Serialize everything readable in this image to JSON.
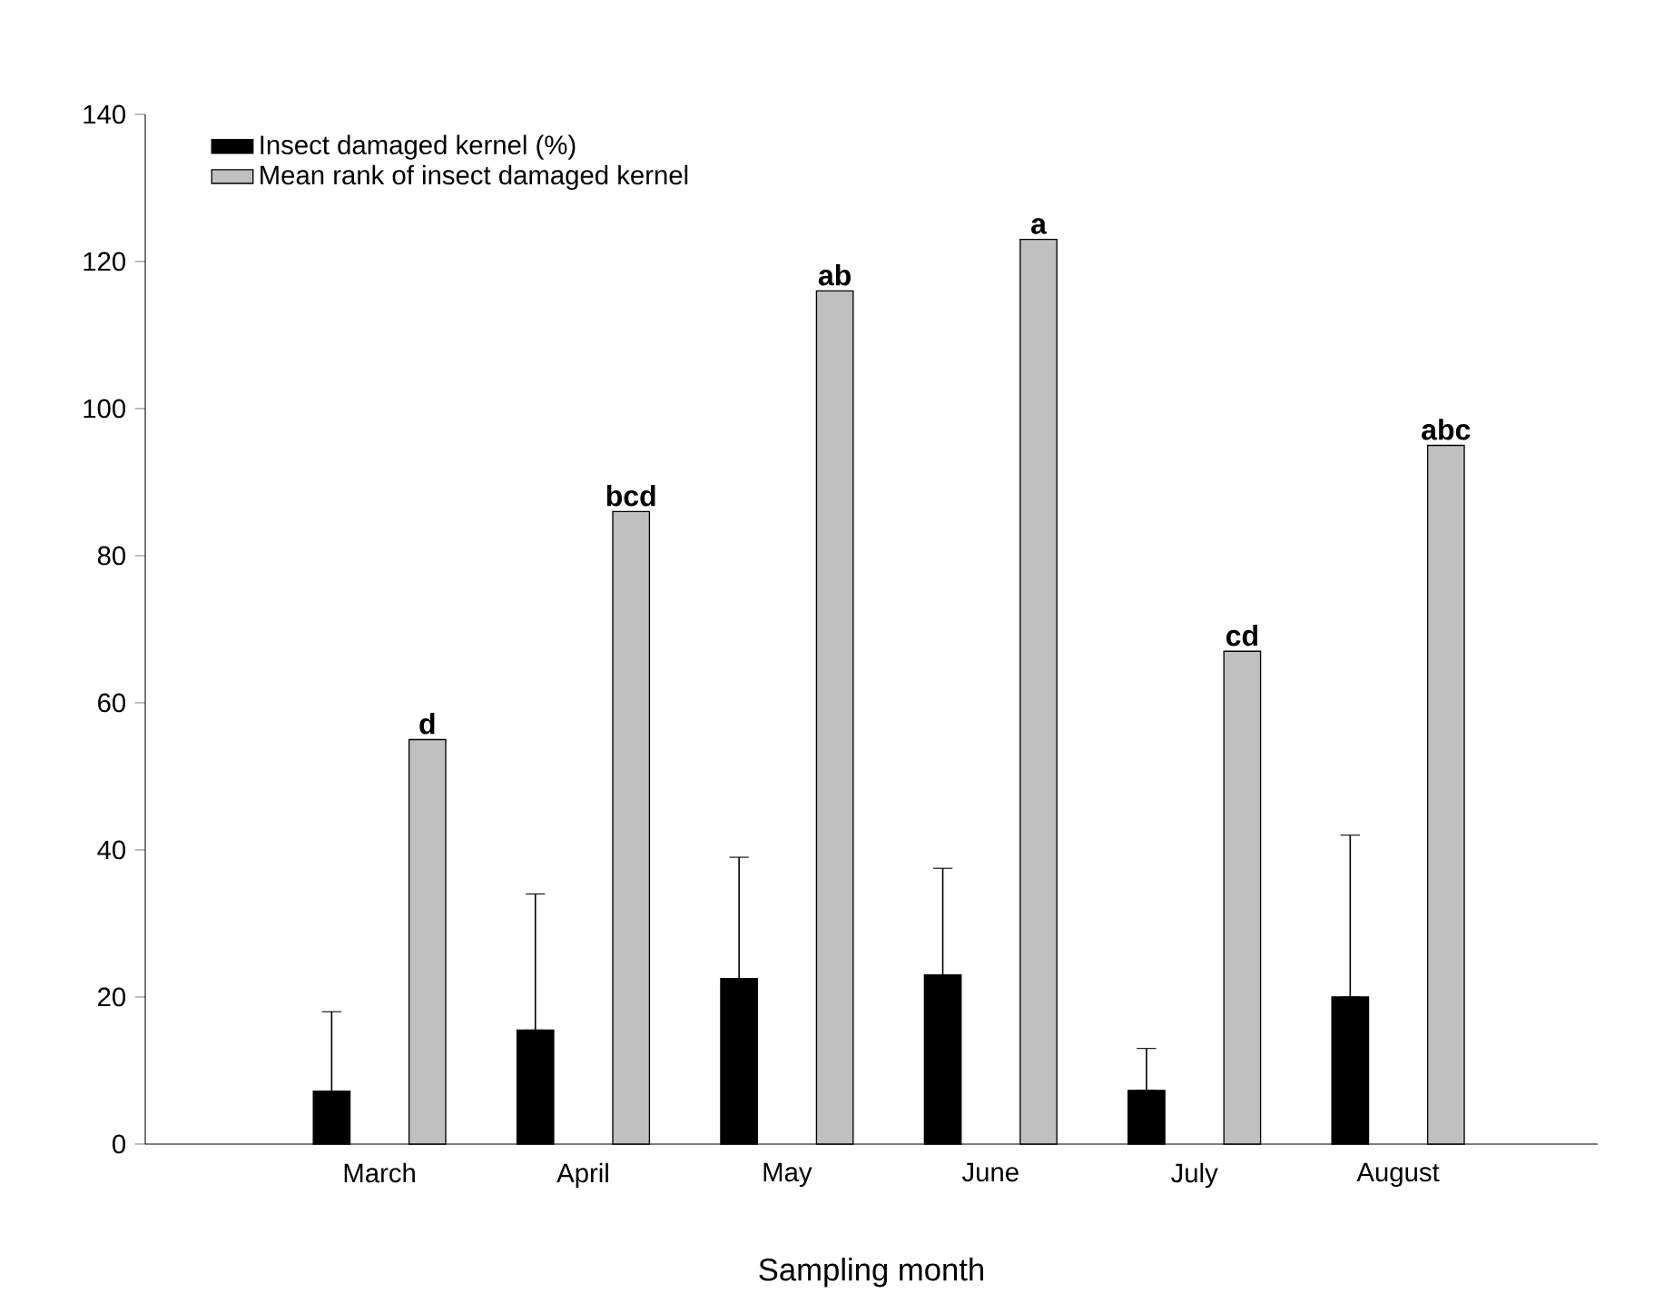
{
  "chart_data": {
    "type": "bar",
    "xlabel": "Sampling month",
    "categories": [
      "March",
      "April",
      "May",
      "June",
      "July",
      "August"
    ],
    "series": [
      {
        "name": "Insect damaged kernel (%)",
        "color": "#000000",
        "values": [
          7.2,
          15.5,
          22.5,
          23,
          7.3,
          20
        ],
        "errors": [
          [
            7.2,
            18
          ],
          [
            15.5,
            34
          ],
          [
            22.5,
            39
          ],
          [
            23,
            37.5
          ],
          [
            7.3,
            13
          ],
          [
            20,
            42
          ]
        ]
      },
      {
        "name": "Mean rank of insect damaged kernel",
        "color": "#c0c0c0",
        "values": [
          55,
          86,
          116,
          123,
          67,
          95
        ]
      }
    ],
    "ylim": [
      0,
      140
    ],
    "yticks": [
      0,
      20,
      40,
      60,
      80,
      100,
      120,
      140
    ],
    "legend": "top left",
    "annotations": [
      "d",
      "bcd",
      "ab",
      "a",
      "cd",
      "abc"
    ]
  }
}
